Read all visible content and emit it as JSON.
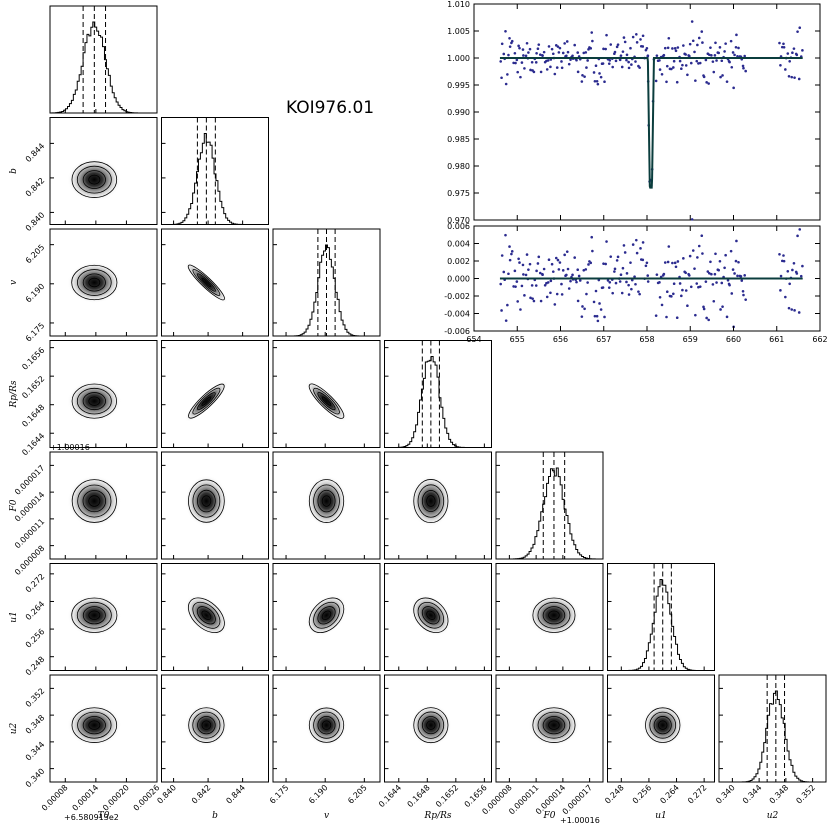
{
  "title": "KOI976.01",
  "chart_data": [
    {
      "type": "corner",
      "parameters": [
        "T0",
        "b",
        "v",
        "Rp/Rs",
        "F0",
        "u1",
        "u2"
      ],
      "axis_labels": [
        "T0",
        "b",
        "v",
        "Rp/Rs",
        "F0",
        "u1",
        "u2"
      ],
      "offsets": [
        "+6.580913e2",
        "",
        "",
        "",
        "+1.00016",
        "",
        ""
      ],
      "x_ticks": [
        [
          "0.00008",
          "0.00014",
          "0.00020",
          "0.00026"
        ],
        [
          "0.840",
          "0.842",
          "0.844"
        ],
        [
          "6.175",
          "6.190",
          "6.205"
        ],
        [
          "0.1644",
          "0.1648",
          "0.1652",
          "0.1656"
        ],
        [
          "0.000008",
          "0.000011",
          "0.000014",
          "0.000017"
        ],
        [
          "0.248",
          "0.256",
          "0.264",
          "0.272"
        ],
        [
          "0.340",
          "0.344",
          "0.348",
          "0.352"
        ]
      ],
      "y_ticks": [
        [],
        [
          "0.840",
          "0.842",
          "0.844"
        ],
        [
          "6.175",
          "6.190",
          "6.205"
        ],
        [
          "0.1644",
          "0.1648",
          "0.1652",
          "0.1656"
        ],
        [
          "0.000008",
          "0.000011",
          "0.000014",
          "0.000017"
        ],
        [
          "0.248",
          "0.256",
          "0.264",
          "0.272"
        ],
        [
          "0.340",
          "0.344",
          "0.348",
          "0.352"
        ]
      ],
      "ranges": [
        [
          5e-05,
          0.00026
        ],
        [
          0.8393,
          0.8455
        ],
        [
          6.17,
          6.211
        ],
        [
          0.1642,
          0.1657
        ],
        [
          6.5e-06,
          1.85e-05
        ],
        [
          0.244,
          0.275
        ],
        [
          0.338,
          0.354
        ]
      ],
      "means": [
        0.000137,
        0.8419,
        6.1905,
        0.16485,
        1.3e-05,
        0.26,
        0.3465
      ],
      "sigmas": [
        2.2e-05,
        0.00052,
        0.0033,
        0.00012,
        1.2e-06,
        0.0025,
        0.0013
      ],
      "correlations": [
        {
          "i": 2,
          "j": 1,
          "rho": -0.92
        },
        {
          "i": 3,
          "j": 1,
          "rho": 0.88
        },
        {
          "i": 3,
          "j": 2,
          "rho": -0.86
        },
        {
          "i": 5,
          "j": 1,
          "rho": -0.45
        },
        {
          "i": 5,
          "j": 2,
          "rho": 0.35
        },
        {
          "i": 5,
          "j": 3,
          "rho": -0.3
        }
      ],
      "quantile_lines": "16th, 50th and 84th percentiles (dashed)"
    },
    {
      "type": "scatter",
      "name": "light-curve",
      "xlim": [
        654,
        662
      ],
      "ylim": [
        0.97,
        1.01
      ],
      "x_ticks": [
        "654",
        "655",
        "656",
        "657",
        "658",
        "659",
        "660",
        "661",
        "662"
      ],
      "y_ticks": [
        "0.970",
        "0.975",
        "0.980",
        "0.985",
        "0.990",
        "0.995",
        "1.000",
        "1.005",
        "1.010"
      ],
      "data_ranges": [
        [
          654.6,
          658.05
        ],
        [
          658.2,
          660.3
        ],
        [
          661.05,
          661.6
        ]
      ],
      "baseline": 1.0,
      "noise_sigma": 0.0021,
      "n_points": 260,
      "transit": {
        "t0": 658.09,
        "half_width": 0.07,
        "depth": 0.024
      },
      "model_color": "#0b3d3d",
      "point_color": "#2b2b8f"
    },
    {
      "type": "scatter",
      "name": "residuals",
      "xlim": [
        654,
        662
      ],
      "ylim": [
        -0.006,
        0.006
      ],
      "x_ticks": [
        "654",
        "655",
        "656",
        "657",
        "658",
        "659",
        "660",
        "661",
        "662"
      ],
      "y_ticks": [
        "-0.006",
        "-0.004",
        "-0.002",
        "0.000",
        "0.002",
        "0.004",
        "0.006"
      ],
      "noise_sigma": 0.0021,
      "zero_line": 0.0
    }
  ]
}
